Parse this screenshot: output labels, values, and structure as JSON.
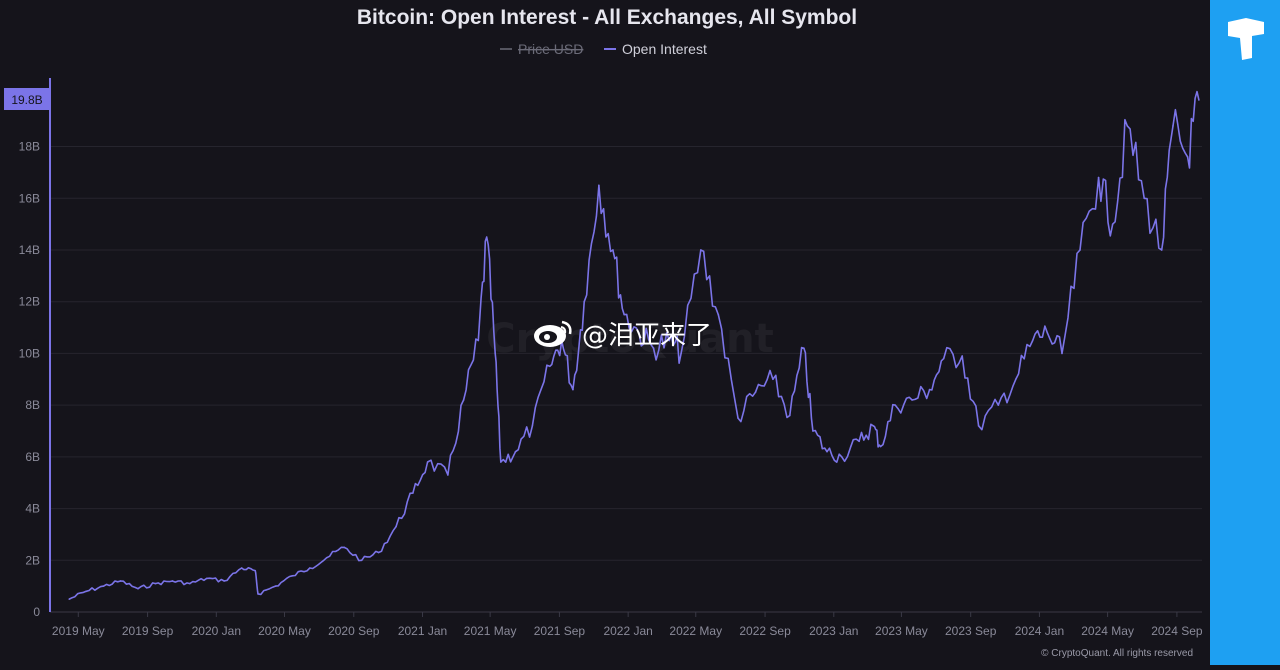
{
  "chart_data": {
    "type": "line",
    "title": "Bitcoin: Open Interest - All Exchanges, All Symbol",
    "legend": [
      {
        "name": "Price USD",
        "color": "#6b6b78",
        "hidden": true
      },
      {
        "name": "Open Interest",
        "color": "#7b74e8",
        "hidden": false
      }
    ],
    "legend_position": "top-center",
    "xlabel": "",
    "ylabel": "",
    "x_ticks": [
      "2019 May",
      "2019 Sep",
      "2020 Jan",
      "2020 May",
      "2020 Sep",
      "2021 Jan",
      "2021 May",
      "2021 Sep",
      "2022 Jan",
      "2022 May",
      "2022 Sep",
      "2023 Jan",
      "2023 May",
      "2023 Sep",
      "2024 Jan",
      "2024 May",
      "2024 Sep"
    ],
    "y_ticks": [
      "0",
      "2B",
      "4B",
      "6B",
      "8B",
      "10B",
      "12B",
      "14B",
      "16B",
      "18B"
    ],
    "ylim": [
      0,
      19.8
    ],
    "grid": true,
    "last_value_label": "19.8B",
    "series": [
      {
        "name": "Open Interest",
        "color": "#7b74e8",
        "x": [
          "2019-04-15",
          "2019-05-15",
          "2019-06-15",
          "2019-07-15",
          "2019-08-15",
          "2019-09-15",
          "2019-10-15",
          "2019-11-15",
          "2019-12-15",
          "2020-01-15",
          "2020-02-15",
          "2020-03-10",
          "2020-03-15",
          "2020-04-15",
          "2020-05-15",
          "2020-06-15",
          "2020-07-15",
          "2020-08-15",
          "2020-09-15",
          "2020-10-15",
          "2020-11-15",
          "2020-12-15",
          "2021-01-10",
          "2021-02-15",
          "2021-03-15",
          "2021-04-10",
          "2021-04-25",
          "2021-05-10",
          "2021-05-20",
          "2021-06-15",
          "2021-07-15",
          "2021-08-15",
          "2021-09-05",
          "2021-09-25",
          "2021-10-15",
          "2021-11-10",
          "2021-12-05",
          "2021-12-25",
          "2022-01-20",
          "2022-02-15",
          "2022-03-15",
          "2022-04-05",
          "2022-05-10",
          "2022-06-10",
          "2022-07-15",
          "2022-08-15",
          "2022-09-15",
          "2022-10-15",
          "2022-11-09",
          "2022-11-25",
          "2022-12-20",
          "2023-01-15",
          "2023-02-15",
          "2023-03-12",
          "2023-03-25",
          "2023-04-20",
          "2023-05-20",
          "2023-06-20",
          "2023-07-15",
          "2023-08-17",
          "2023-09-15",
          "2023-10-20",
          "2023-11-20",
          "2023-12-20",
          "2024-01-15",
          "2024-02-10",
          "2024-03-13",
          "2024-04-15",
          "2024-05-10",
          "2024-06-05",
          "2024-07-05",
          "2024-08-05",
          "2024-08-25",
          "2024-09-20",
          "2024-10-10"
        ],
        "values": [
          0.5,
          0.8,
          1.0,
          1.2,
          0.9,
          1.1,
          1.2,
          1.1,
          1.3,
          1.2,
          1.7,
          1.6,
          0.7,
          1.0,
          1.4,
          1.7,
          2.1,
          2.5,
          2.0,
          2.3,
          3.3,
          4.6,
          5.8,
          5.3,
          8.2,
          10.5,
          14.5,
          10.0,
          5.8,
          6.2,
          7.2,
          9.5,
          10.5,
          8.6,
          12.0,
          16.5,
          14.0,
          11.5,
          10.8,
          10.2,
          10.5,
          10.0,
          14.0,
          11.5,
          7.5,
          8.5,
          9.0,
          7.6,
          10.2,
          7.0,
          6.2,
          6.0,
          6.6,
          7.2,
          6.4,
          8.0,
          8.2,
          8.6,
          9.8,
          9.9,
          7.2,
          8.0,
          9.0,
          10.5,
          10.8,
          10.0,
          14.0,
          16.8,
          15.0,
          18.8,
          16.0,
          14.0,
          18.8,
          17.6,
          19.8
        ]
      }
    ]
  },
  "watermark_text": "CryptoQuant",
  "weibo_handle": "@泪亚来了",
  "copyright": "© CryptoQuant. All rights reserved",
  "colors": {
    "background": "#15141b",
    "side_bar": "#1ea0f2",
    "line": "#7b74e8",
    "grid": "#26252e",
    "axis": "#7b74e8",
    "label_box": "#7b74e8"
  },
  "side_logo_icon": "brand-logo-icon"
}
